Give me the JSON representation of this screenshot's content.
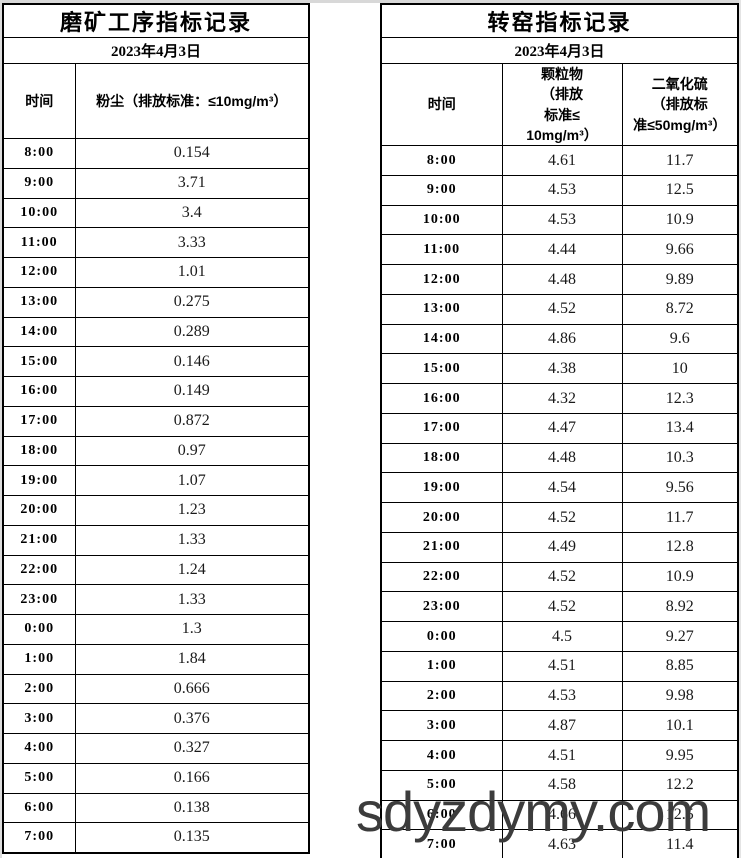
{
  "left_table": {
    "title": "磨矿工序指标记录",
    "date": "2023年4月3日",
    "columns": {
      "time": "时间",
      "dust": "粉尘（排放标准：≤10mg/m³）"
    },
    "rows": [
      [
        "8:00",
        "0.154"
      ],
      [
        "9:00",
        "3.71"
      ],
      [
        "10:00",
        "3.4"
      ],
      [
        "11:00",
        "3.33"
      ],
      [
        "12:00",
        "1.01"
      ],
      [
        "13:00",
        "0.275"
      ],
      [
        "14:00",
        "0.289"
      ],
      [
        "15:00",
        "0.146"
      ],
      [
        "16:00",
        "0.149"
      ],
      [
        "17:00",
        "0.872"
      ],
      [
        "18:00",
        "0.97"
      ],
      [
        "19:00",
        "1.07"
      ],
      [
        "20:00",
        "1.23"
      ],
      [
        "21:00",
        "1.33"
      ],
      [
        "22:00",
        "1.24"
      ],
      [
        "23:00",
        "1.33"
      ],
      [
        "0:00",
        "1.3"
      ],
      [
        "1:00",
        "1.84"
      ],
      [
        "2:00",
        "0.666"
      ],
      [
        "3:00",
        "0.376"
      ],
      [
        "4:00",
        "0.327"
      ],
      [
        "5:00",
        "0.166"
      ],
      [
        "6:00",
        "0.138"
      ],
      [
        "7:00",
        "0.135"
      ]
    ]
  },
  "right_table": {
    "title": "转窑指标记录",
    "date": "2023年4月3日",
    "columns": {
      "time": "时间",
      "pm": "颗粒物\n（排放\n标准≤\n10mg/m³）",
      "so2": "二氧化硫\n（排放标\n准≤50mg/m³）"
    },
    "rows": [
      [
        "8:00",
        "4.61",
        "11.7"
      ],
      [
        "9:00",
        "4.53",
        "12.5"
      ],
      [
        "10:00",
        "4.53",
        "10.9"
      ],
      [
        "11:00",
        "4.44",
        "9.66"
      ],
      [
        "12:00",
        "4.48",
        "9.89"
      ],
      [
        "13:00",
        "4.52",
        "8.72"
      ],
      [
        "14:00",
        "4.86",
        "9.6"
      ],
      [
        "15:00",
        "4.38",
        "10"
      ],
      [
        "16:00",
        "4.32",
        "12.3"
      ],
      [
        "17:00",
        "4.47",
        "13.4"
      ],
      [
        "18:00",
        "4.48",
        "10.3"
      ],
      [
        "19:00",
        "4.54",
        "9.56"
      ],
      [
        "20:00",
        "4.52",
        "11.7"
      ],
      [
        "21:00",
        "4.49",
        "12.8"
      ],
      [
        "22:00",
        "4.52",
        "10.9"
      ],
      [
        "23:00",
        "4.52",
        "8.92"
      ],
      [
        "0:00",
        "4.5",
        "9.27"
      ],
      [
        "1:00",
        "4.51",
        "8.85"
      ],
      [
        "2:00",
        "4.53",
        "9.98"
      ],
      [
        "3:00",
        "4.87",
        "10.1"
      ],
      [
        "4:00",
        "4.51",
        "9.95"
      ],
      [
        "5:00",
        "4.58",
        "12.2"
      ],
      [
        "6:00",
        "4.66",
        "12.5"
      ],
      [
        "7:00",
        "4.63",
        "11.4"
      ]
    ]
  },
  "watermark": "sdyzdymy.com",
  "colors": {
    "border": "#000000",
    "value_text": "#1a1a1a",
    "watermark_gray": "#3c3c3c",
    "edge_gray": "#d8d8d8"
  }
}
